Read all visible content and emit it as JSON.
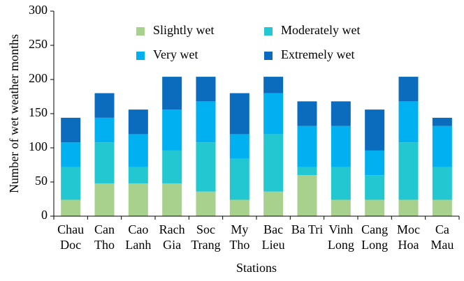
{
  "chart_data": {
    "type": "stacked_bar",
    "x_label": "Stations",
    "y_label": "Number of wet weather months",
    "categories": [
      "Chau Doc",
      "Can Tho",
      "Cao Lanh",
      "Rach Gia",
      "Soc Trang",
      "My Tho",
      "Bac Lieu",
      "Ba Tri",
      "Vinh Long",
      "Cang Long",
      "Moc Hoa",
      "Ca Mau"
    ],
    "series": [
      {
        "name": "Slightly wet",
        "color": "#a9d18e",
        "values": [
          24,
          48,
          48,
          48,
          36,
          24,
          36,
          60,
          24,
          24,
          24,
          24
        ]
      },
      {
        "name": "Moderately wet",
        "color": "#22c7d2",
        "values": [
          48,
          60,
          24,
          48,
          72,
          60,
          84,
          12,
          48,
          36,
          84,
          48
        ]
      },
      {
        "name": "Very wet",
        "color": "#00b0f0",
        "values": [
          36,
          36,
          48,
          60,
          60,
          36,
          60,
          60,
          60,
          36,
          60,
          60
        ]
      },
      {
        "name": "Extremely wet",
        "color": "#0b6cbd",
        "values": [
          36,
          36,
          36,
          48,
          36,
          60,
          24,
          36,
          36,
          60,
          36,
          12
        ]
      }
    ],
    "ylim": [
      0,
      300
    ],
    "yticks": [
      0,
      50,
      100,
      150,
      200,
      250,
      300
    ]
  }
}
